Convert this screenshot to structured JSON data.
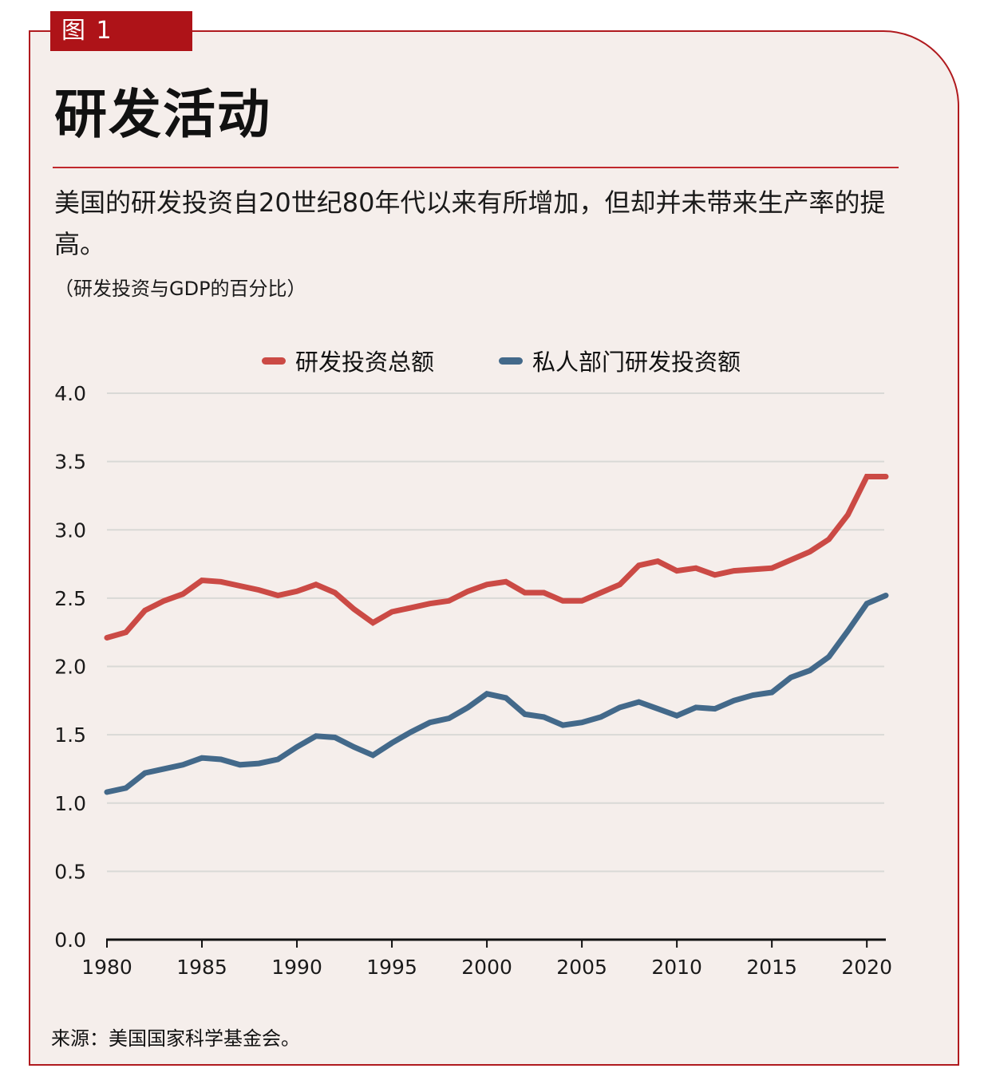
{
  "figure": {
    "tag": "图 1",
    "title": "研发活动",
    "subtitle": "美国的研发投资自20世纪80年代以来有所增加，但却并未带来生产率的提高。",
    "unit_note": "（研发投资与GDP的百分比）",
    "source": "来源：美国国家科学基金会。",
    "colors": {
      "frame": "#b01a1e",
      "tag_bg": "#ae1318",
      "background": "#f5eeeb",
      "grid": "#d9d9d6"
    }
  },
  "chart_data": {
    "type": "line",
    "title": "研发活动",
    "xlabel": "",
    "ylabel": "（研发投资与GDP的百分比）",
    "xlim": [
      1980,
      2021
    ],
    "ylim": [
      0,
      4
    ],
    "grid": true,
    "legend_position": "top-center",
    "x_ticks": [
      "1980",
      "1985",
      "1990",
      "1995",
      "2000",
      "2005",
      "2010",
      "2015",
      "2020"
    ],
    "y_ticks": [
      "0.0",
      "0.5",
      "1.0",
      "1.5",
      "2.0",
      "2.5",
      "3.0",
      "3.5",
      "4.0"
    ],
    "x": [
      1980,
      1981,
      1982,
      1983,
      1984,
      1985,
      1986,
      1987,
      1988,
      1989,
      1990,
      1991,
      1992,
      1993,
      1994,
      1995,
      1996,
      1997,
      1998,
      1999,
      2000,
      2001,
      2002,
      2003,
      2004,
      2005,
      2006,
      2007,
      2008,
      2009,
      2010,
      2011,
      2012,
      2013,
      2014,
      2015,
      2016,
      2017,
      2018,
      2019,
      2020,
      2021
    ],
    "series": [
      {
        "name": "研发投资总额",
        "color": "#cb4a45",
        "values": [
          2.21,
          2.25,
          2.41,
          2.48,
          2.53,
          2.63,
          2.62,
          2.59,
          2.56,
          2.52,
          2.55,
          2.6,
          2.54,
          2.42,
          2.32,
          2.4,
          2.43,
          2.46,
          2.48,
          2.55,
          2.6,
          2.62,
          2.54,
          2.54,
          2.48,
          2.48,
          2.54,
          2.6,
          2.74,
          2.77,
          2.7,
          2.72,
          2.67,
          2.7,
          2.71,
          2.72,
          2.78,
          2.84,
          2.93,
          3.11,
          3.39,
          3.39
        ]
      },
      {
        "name": "私人部门研发投资额",
        "color": "#43698a",
        "values": [
          1.08,
          1.11,
          1.22,
          1.25,
          1.28,
          1.33,
          1.32,
          1.28,
          1.29,
          1.32,
          1.41,
          1.49,
          1.48,
          1.41,
          1.35,
          1.44,
          1.52,
          1.59,
          1.62,
          1.7,
          1.8,
          1.77,
          1.65,
          1.63,
          1.57,
          1.59,
          1.63,
          1.7,
          1.74,
          1.69,
          1.64,
          1.7,
          1.69,
          1.75,
          1.79,
          1.81,
          1.92,
          1.97,
          2.07,
          2.26,
          2.46,
          2.52
        ]
      }
    ]
  }
}
